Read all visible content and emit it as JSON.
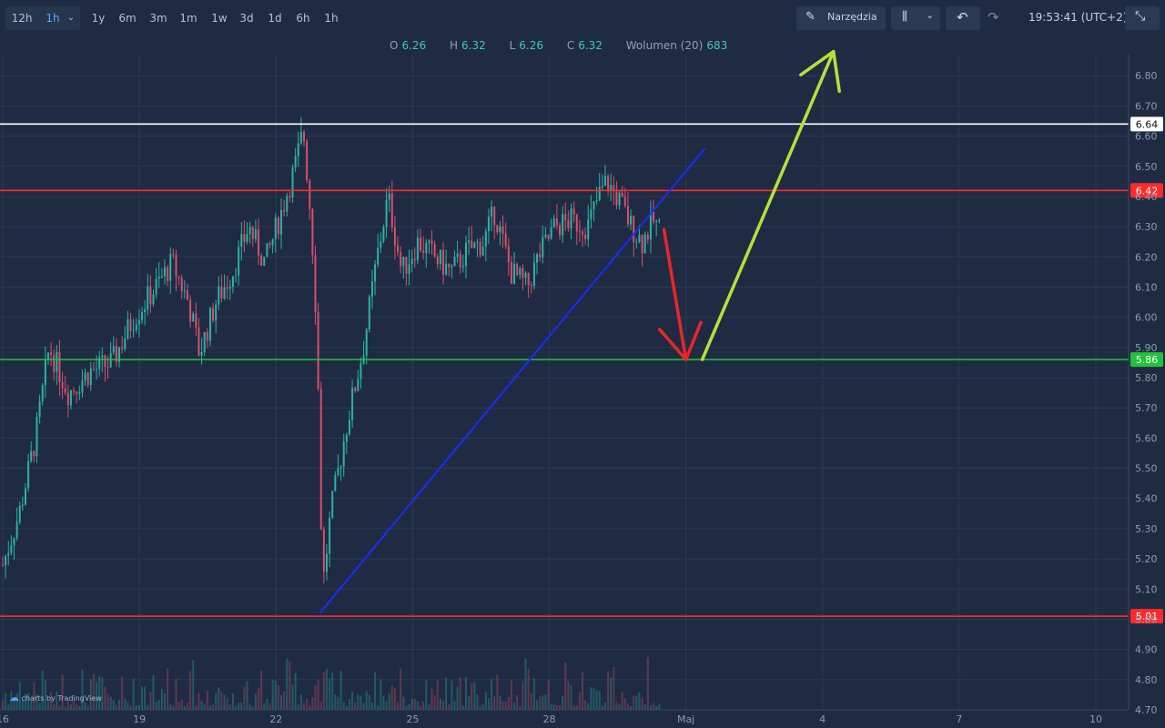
{
  "toolbar": {
    "timeframes": [
      "12h",
      "1h",
      "1y",
      "6m",
      "3m",
      "1m",
      "1w",
      "3d",
      "1d",
      "6h",
      "1h"
    ],
    "tools_label": "Narzędzia",
    "clock": "19:53:41 (UTC+2)"
  },
  "ohlc": {
    "o_label": "O",
    "o": "6.26",
    "h_label": "H",
    "h": "6.32",
    "l_label": "L",
    "l": "6.26",
    "c_label": "C",
    "c": "6.32",
    "vol_label": "Wolumen (20)",
    "vol": "683"
  },
  "watermark": "charts by TradingView",
  "chart_data": {
    "type": "candlestick",
    "ylim": [
      4.7,
      6.87
    ],
    "y_ticks": [
      "4.70",
      "4.80",
      "4.90",
      "5.00",
      "5.10",
      "5.20",
      "5.30",
      "5.40",
      "5.50",
      "5.60",
      "5.70",
      "5.80",
      "5.90",
      "6.00",
      "6.10",
      "6.20",
      "6.30",
      "6.40",
      "6.50",
      "6.60",
      "6.70",
      "6.80"
    ],
    "x_ticks": [
      "16",
      "19",
      "22",
      "25",
      "28",
      "Maj",
      "4",
      "7",
      "10"
    ],
    "price_lines": [
      {
        "value": 6.64,
        "label": "6.64",
        "color": "#ffffff"
      },
      {
        "value": 6.42,
        "label": "6.42",
        "color": "#ff2b2b"
      },
      {
        "value": 5.86,
        "label": "5.86",
        "color": "#22c33a"
      },
      {
        "value": 5.01,
        "label": "5.01",
        "color": "#ff2b2b"
      }
    ],
    "close_path": [
      {
        "x": 0,
        "y": 5.18
      },
      {
        "x": 0.3,
        "y": 5.35
      },
      {
        "x": 0.6,
        "y": 5.6
      },
      {
        "x": 0.85,
        "y": 5.9
      },
      {
        "x": 1.2,
        "y": 5.75
      },
      {
        "x": 1.6,
        "y": 5.82
      },
      {
        "x": 2.0,
        "y": 5.85
      },
      {
        "x": 2.4,
        "y": 6.0
      },
      {
        "x": 2.8,
        "y": 6.1
      },
      {
        "x": 3.1,
        "y": 6.18
      },
      {
        "x": 3.4,
        "y": 6.05
      },
      {
        "x": 3.6,
        "y": 5.88
      },
      {
        "x": 3.9,
        "y": 6.05
      },
      {
        "x": 4.2,
        "y": 6.15
      },
      {
        "x": 4.5,
        "y": 6.3
      },
      {
        "x": 4.8,
        "y": 6.18
      },
      {
        "x": 5.1,
        "y": 6.35
      },
      {
        "x": 5.35,
        "y": 6.5
      },
      {
        "x": 5.5,
        "y": 6.62
      },
      {
        "x": 5.65,
        "y": 6.3
      },
      {
        "x": 5.75,
        "y": 5.95
      },
      {
        "x": 5.85,
        "y": 5.1
      },
      {
        "x": 6.0,
        "y": 5.35
      },
      {
        "x": 6.3,
        "y": 5.65
      },
      {
        "x": 6.6,
        "y": 5.9
      },
      {
        "x": 6.85,
        "y": 6.2
      },
      {
        "x": 7.05,
        "y": 6.4
      },
      {
        "x": 7.3,
        "y": 6.15
      },
      {
        "x": 7.6,
        "y": 6.25
      },
      {
        "x": 7.9,
        "y": 6.2
      },
      {
        "x": 8.2,
        "y": 6.15
      },
      {
        "x": 8.5,
        "y": 6.22
      },
      {
        "x": 8.8,
        "y": 6.25
      },
      {
        "x": 9.0,
        "y": 6.35
      },
      {
        "x": 9.3,
        "y": 6.15
      },
      {
        "x": 9.6,
        "y": 6.1
      },
      {
        "x": 9.8,
        "y": 6.2
      },
      {
        "x": 10.1,
        "y": 6.3
      },
      {
        "x": 10.4,
        "y": 6.32
      },
      {
        "x": 10.7,
        "y": 6.3
      },
      {
        "x": 10.9,
        "y": 6.4
      },
      {
        "x": 11.05,
        "y": 6.45
      },
      {
        "x": 11.3,
        "y": 6.38
      },
      {
        "x": 11.5,
        "y": 6.3
      },
      {
        "x": 11.7,
        "y": 6.25
      },
      {
        "x": 11.9,
        "y": 6.32
      },
      {
        "x": 12.05,
        "y": 6.28
      }
    ],
    "annotations": [
      {
        "kind": "trendline",
        "color": "#1c2bff",
        "from": {
          "x": 5.8,
          "y": 5.02
        },
        "to": {
          "x": 12.85,
          "y": 6.56
        }
      },
      {
        "kind": "arrow",
        "color": "#e8262a",
        "from": {
          "x": 12.1,
          "y": 6.29
        },
        "to": {
          "x": 12.5,
          "y": 5.86
        }
      },
      {
        "kind": "arrow",
        "color": "#b8e03a",
        "from": {
          "x": 12.8,
          "y": 5.86
        },
        "to": {
          "x": 15.2,
          "y": 6.88
        }
      }
    ],
    "x_domain": [
      -0.05,
      20.6
    ]
  }
}
